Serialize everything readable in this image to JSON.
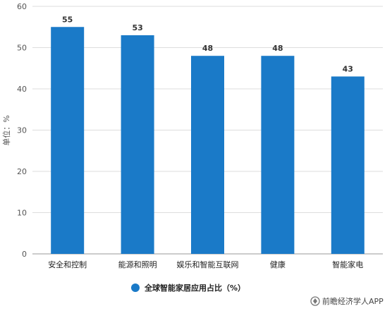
{
  "chart_data": {
    "type": "bar",
    "categories": [
      "安全和控制",
      "能源和照明",
      "娱乐和智能互联网",
      "健康",
      "智能家电"
    ],
    "series": [
      {
        "name": "全球智能家居应用占比（%）",
        "values": [
          55,
          53,
          48,
          48,
          43
        ]
      }
    ],
    "ylabel": "单位：%",
    "ylim": [
      0,
      60
    ],
    "yticks": [
      0,
      10,
      20,
      30,
      40,
      50,
      60
    ],
    "grid": true,
    "legend": "bottom-center",
    "bar_color": "#1a7ac8",
    "data_labels": true
  },
  "watermark": {
    "text": "前瞻经济学人APP",
    "icon": "qianzhan-logo-icon"
  }
}
